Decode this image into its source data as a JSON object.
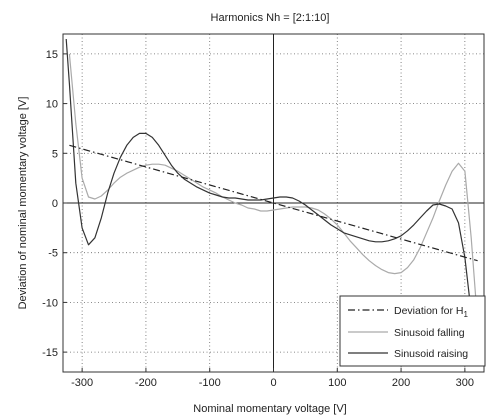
{
  "chart_data": {
    "type": "line",
    "title": "Harmonics Nh = [2:1:10]",
    "xlabel": "Nominal momentary voltage [V]",
    "ylabel": "Deviation of nominal momentary voltage [V]",
    "xlim": [
      -330,
      330
    ],
    "ylim": [
      -17,
      17
    ],
    "xticks": [
      -300,
      -200,
      -100,
      0,
      100,
      200,
      300
    ],
    "yticks": [
      -15,
      -10,
      -5,
      0,
      5,
      10,
      15
    ],
    "grid": true,
    "grid_style": "dotted",
    "zero_axes_drawn": true,
    "legend_position": "bottom-right",
    "series": [
      {
        "name": "Deviation for H1",
        "legend_main": "Deviation for H",
        "legend_sub": "1",
        "style": "dash-dot",
        "color": "#222222",
        "x": [
          -320,
          320
        ],
        "y": [
          5.8,
          -5.8
        ]
      },
      {
        "name": "Sinusoid falling",
        "style": "solid",
        "color": "#aaaaaa",
        "x": [
          -320,
          -310,
          -300,
          -290,
          -280,
          -270,
          -260,
          -250,
          -240,
          -230,
          -220,
          -210,
          -200,
          -190,
          -180,
          -170,
          -160,
          -150,
          -140,
          -130,
          -120,
          -110,
          -100,
          -90,
          -80,
          -70,
          -60,
          -50,
          -40,
          -30,
          -20,
          -10,
          0,
          10,
          20,
          30,
          40,
          50,
          60,
          70,
          80,
          90,
          100,
          110,
          120,
          130,
          140,
          150,
          160,
          170,
          180,
          190,
          200,
          210,
          220,
          230,
          240,
          250,
          260,
          270,
          280,
          290,
          300,
          310,
          320
        ],
        "y": [
          15.0,
          8.0,
          2.5,
          0.6,
          0.4,
          0.7,
          1.3,
          2.0,
          2.6,
          3.0,
          3.3,
          3.6,
          3.8,
          3.9,
          3.9,
          3.8,
          3.5,
          3.2,
          2.8,
          2.4,
          2.0,
          1.6,
          1.3,
          1.0,
          0.6,
          0.3,
          0.0,
          -0.2,
          -0.5,
          -0.6,
          -0.8,
          -0.8,
          -0.7,
          -0.6,
          -0.5,
          -0.4,
          -0.4,
          -0.4,
          -0.5,
          -0.7,
          -1.1,
          -1.6,
          -2.2,
          -3.0,
          -3.8,
          -4.5,
          -5.2,
          -5.8,
          -6.3,
          -6.7,
          -7.0,
          -7.1,
          -7.0,
          -6.5,
          -5.7,
          -4.5,
          -3.0,
          -1.5,
          0.2,
          1.8,
          3.2,
          4.0,
          3.2,
          -3.5,
          -12.0
        ]
      },
      {
        "name": "Sinusoid raising",
        "style": "solid",
        "color": "#333333",
        "x": [
          -325,
          -320,
          -310,
          -300,
          -290,
          -280,
          -270,
          -260,
          -250,
          -240,
          -230,
          -220,
          -210,
          -200,
          -190,
          -180,
          -170,
          -160,
          -150,
          -140,
          -130,
          -120,
          -110,
          -100,
          -90,
          -80,
          -70,
          -60,
          -50,
          -40,
          -30,
          -20,
          -10,
          0,
          10,
          20,
          30,
          40,
          50,
          60,
          70,
          80,
          90,
          100,
          110,
          120,
          130,
          140,
          150,
          160,
          170,
          180,
          190,
          200,
          210,
          220,
          230,
          240,
          250,
          260,
          270,
          280,
          290,
          300,
          310,
          320
        ],
        "y": [
          16.5,
          12.0,
          2.0,
          -2.5,
          -4.2,
          -3.5,
          -1.5,
          1.0,
          3.0,
          4.6,
          5.8,
          6.6,
          7.0,
          7.0,
          6.6,
          5.8,
          4.8,
          3.8,
          3.0,
          2.4,
          2.0,
          1.6,
          1.3,
          1.0,
          0.8,
          0.6,
          0.5,
          0.5,
          0.4,
          0.3,
          0.3,
          0.3,
          0.4,
          0.5,
          0.6,
          0.6,
          0.5,
          0.2,
          -0.2,
          -0.7,
          -1.2,
          -1.7,
          -2.2,
          -2.6,
          -3.0,
          -3.2,
          -3.4,
          -3.6,
          -3.8,
          -3.9,
          -3.9,
          -3.8,
          -3.6,
          -3.3,
          -2.8,
          -2.2,
          -1.5,
          -0.8,
          -0.2,
          -0.1,
          -0.3,
          -0.6,
          -2.0,
          -5.5,
          -11.0,
          -14.0
        ]
      }
    ]
  }
}
